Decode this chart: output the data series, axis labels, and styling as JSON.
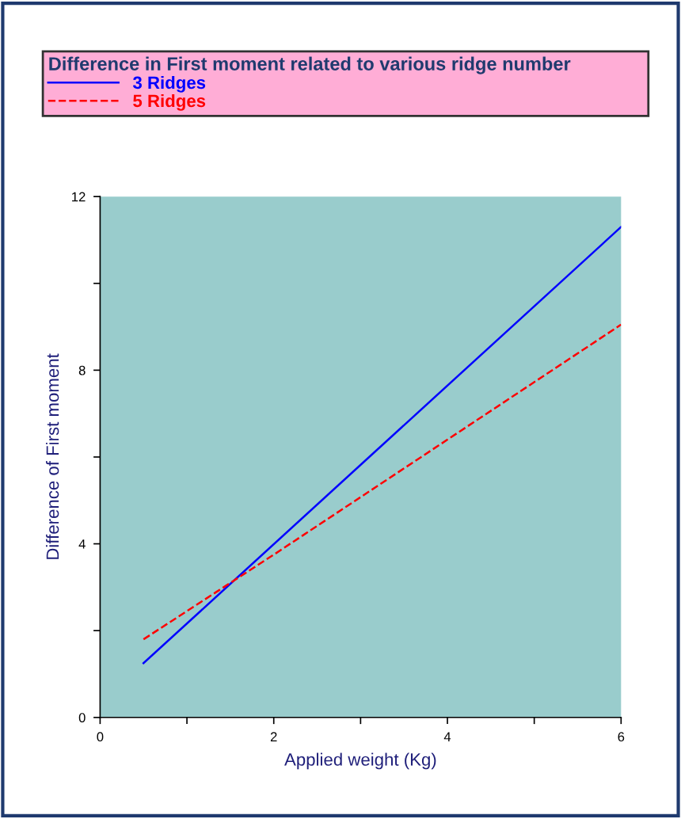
{
  "chart_data": {
    "type": "line",
    "xlabel": "Applied weight (Kg)",
    "ylabel": "Difference of First moment",
    "legend_title": "Difference in First moment related to various ridge number",
    "xlim": [
      0,
      6
    ],
    "ylim": [
      0,
      12
    ],
    "xticks": [
      0,
      {
        "value": 1,
        "label": null
      },
      2,
      {
        "value": 3,
        "label": null
      },
      4,
      {
        "value": 5,
        "label": null
      },
      6
    ],
    "yticks": [
      0,
      {
        "value": 2,
        "label": null
      },
      4,
      {
        "value": 6,
        "label": null
      },
      8,
      {
        "value": 10,
        "label": null
      },
      12
    ],
    "grid": false,
    "legend": "top",
    "series": [
      {
        "name": "3 Ridges",
        "color": "#0000ff",
        "line_style": "solid",
        "x": [
          0.5,
          6
        ],
        "values": [
          1.25,
          11.3
        ]
      },
      {
        "name": "5 Ridges",
        "color": "#ff0000",
        "line_style": "dashed",
        "x": [
          0.5,
          2,
          4,
          6
        ],
        "values": [
          1.8,
          3.75,
          6.4,
          9.05
        ]
      }
    ]
  }
}
